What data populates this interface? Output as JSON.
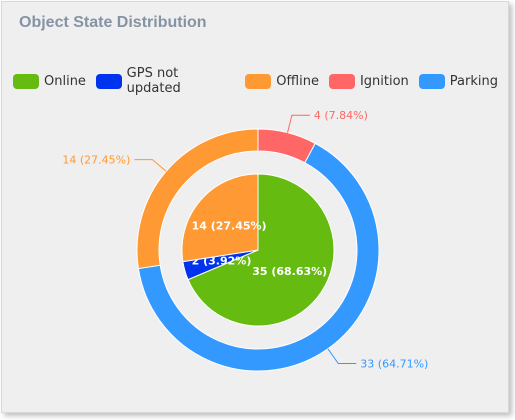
{
  "chart_data": {
    "type": "pie",
    "title": "Object State Distribution",
    "legend_position": "top-left",
    "legend": [
      {
        "name": "Online",
        "color": "#66bb11"
      },
      {
        "name": "GPS not updated",
        "color": "#0033ee"
      },
      {
        "name": "Offline",
        "color": "#ff9933"
      },
      {
        "name": "Ignition",
        "color": "#ff6666"
      },
      {
        "name": "Parking",
        "color": "#3399ff"
      }
    ],
    "series": [
      {
        "ring": "inner",
        "slices": [
          {
            "name": "Online",
            "value": 35,
            "label": "35 (68.63%)",
            "color": "#66bb11"
          },
          {
            "name": "GPS not updated",
            "value": 2,
            "label": "2 (3.92%)",
            "color": "#0033ee"
          },
          {
            "name": "Offline",
            "value": 14,
            "label": "14 (27.45%)",
            "color": "#ff9933"
          }
        ]
      },
      {
        "ring": "outer",
        "slices": [
          {
            "name": "Ignition",
            "value": 4,
            "label": "4 (7.84%)",
            "color": "#ff6666"
          },
          {
            "name": "Parking",
            "value": 33,
            "label": "33 (64.71%)",
            "color": "#3399ff"
          },
          {
            "name": "Offline",
            "value": 14,
            "label": "14 (27.45%)",
            "color": "#ff9933"
          }
        ]
      }
    ]
  }
}
